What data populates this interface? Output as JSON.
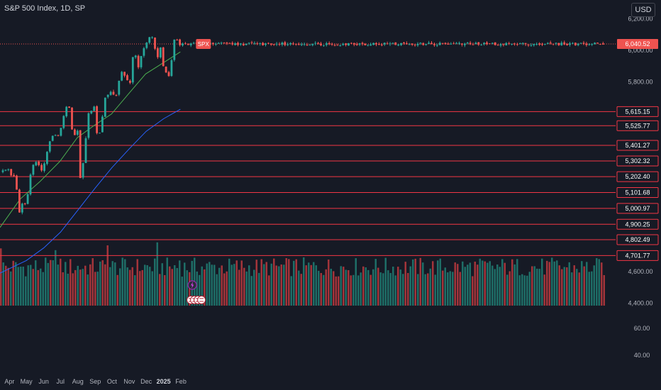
{
  "header": {
    "title": "S&P 500 Index, 1D, SP",
    "currency": "USD"
  },
  "colors": {
    "background": "#161a25",
    "up": "#26a69a",
    "down": "#ef5350",
    "level_line": "#f23645",
    "ma_short": "#4caf50",
    "ma_long": "#2962ff",
    "axis_text": "#b2b5be",
    "vol_up": "#1e6e67",
    "vol_down": "#a3343a"
  },
  "chart_data": {
    "type": "candlestick",
    "title": "S&P 500 Index, 1D, SP",
    "symbol": "SPX",
    "last_price": 6040.52,
    "last_price_label": "6,040.52",
    "price_axis_ticks": [
      6200,
      6000,
      5800,
      4600,
      4400
    ],
    "price_axis_labels": [
      "6,200.00",
      "6,000.00",
      "5,800.00",
      "4,600.00",
      "4,400.00"
    ],
    "volume_axis_labels": [
      "60.00",
      "40.00"
    ],
    "ylim": [
      4400,
      6200
    ],
    "x_tick_labels": [
      "Apr",
      "May",
      "Jun",
      "Jul",
      "Aug",
      "Sep",
      "Oct",
      "Nov",
      "Dec",
      "2025",
      "Feb"
    ],
    "horizontal_levels": [
      {
        "value": 5615.15,
        "label": "5,615.15"
      },
      {
        "value": 5525.77,
        "label": "5,525.77"
      },
      {
        "value": 5401.27,
        "label": "5,401.27"
      },
      {
        "value": 5302.32,
        "label": "5,302.32"
      },
      {
        "value": 5202.4,
        "label": "5,202.40"
      },
      {
        "value": 5101.68,
        "label": "5,101.68"
      },
      {
        "value": 5000.97,
        "label": "5,000.97"
      },
      {
        "value": 4900.25,
        "label": "4,900.25"
      },
      {
        "value": 4802.49,
        "label": "4,802.49"
      },
      {
        "value": 4701.77,
        "label": "4,701.77"
      }
    ],
    "price_path": [
      [
        "2024-03-15",
        5230
      ],
      [
        "2024-03-28",
        5255
      ],
      [
        "2024-04-04",
        5215
      ],
      [
        "2024-04-11",
        5200
      ],
      [
        "2024-04-19",
        4975
      ],
      [
        "2024-04-25",
        5050
      ],
      [
        "2024-05-01",
        5015
      ],
      [
        "2024-05-06",
        5180
      ],
      [
        "2024-05-15",
        5305
      ],
      [
        "2024-05-23",
        5280
      ],
      [
        "2024-05-30",
        5240
      ],
      [
        "2024-06-12",
        5420
      ],
      [
        "2024-06-18",
        5480
      ],
      [
        "2024-06-28",
        5460
      ],
      [
        "2024-07-10",
        5630
      ],
      [
        "2024-07-16",
        5665
      ],
      [
        "2024-07-24",
        5430
      ],
      [
        "2024-07-31",
        5520
      ],
      [
        "2024-08-05",
        5190
      ],
      [
        "2024-08-12",
        5330
      ],
      [
        "2024-08-19",
        5600
      ],
      [
        "2024-08-30",
        5650
      ],
      [
        "2024-09-06",
        5410
      ],
      [
        "2024-09-12",
        5550
      ],
      [
        "2024-09-19",
        5710
      ],
      [
        "2024-09-30",
        5750
      ],
      [
        "2024-10-07",
        5700
      ],
      [
        "2024-10-18",
        5870
      ],
      [
        "2024-10-28",
        5820
      ],
      [
        "2024-10-31",
        5710
      ],
      [
        "2024-11-06",
        5930
      ],
      [
        "2024-11-11",
        6010
      ],
      [
        "2024-11-15",
        5870
      ],
      [
        "2024-11-22",
        5970
      ],
      [
        "2024-12-06",
        6090
      ],
      [
        "2024-12-16",
        6070
      ],
      [
        "2024-12-18",
        5880
      ],
      [
        "2024-12-26",
        6040
      ],
      [
        "2025-01-02",
        5870
      ],
      [
        "2025-01-10",
        5830
      ],
      [
        "2025-01-13",
        5840
      ],
      [
        "2025-01-17",
        6000
      ],
      [
        "2025-01-23",
        6120
      ],
      [
        "2025-01-27",
        6020
      ],
      [
        "2025-01-31",
        6040.52
      ]
    ],
    "ma_short": [
      [
        "2024-03-15",
        4880
      ],
      [
        "2024-04-20",
        5060
      ],
      [
        "2024-05-25",
        5170
      ],
      [
        "2024-06-30",
        5300
      ],
      [
        "2024-07-31",
        5450
      ],
      [
        "2024-08-31",
        5530
      ],
      [
        "2024-09-30",
        5600
      ],
      [
        "2024-10-31",
        5730
      ],
      [
        "2024-11-30",
        5850
      ],
      [
        "2024-12-31",
        5920
      ],
      [
        "2025-01-31",
        5990
      ]
    ],
    "ma_long": [
      [
        "2024-03-15",
        4590
      ],
      [
        "2024-05-01",
        4670
      ],
      [
        "2024-06-01",
        4750
      ],
      [
        "2024-07-01",
        4850
      ],
      [
        "2024-08-01",
        4990
      ],
      [
        "2024-09-01",
        5130
      ],
      [
        "2024-10-01",
        5260
      ],
      [
        "2024-11-01",
        5380
      ],
      [
        "2024-12-01",
        5490
      ],
      [
        "2025-01-01",
        5570
      ],
      [
        "2025-01-31",
        5630
      ]
    ],
    "volume_range": [
      0,
      100
    ],
    "volume_spikes": [
      [
        "2024-03-15",
        95
      ],
      [
        "2024-06-20",
        92
      ],
      [
        "2024-09-20",
        100
      ],
      [
        "2024-12-20",
        105
      ],
      [
        "2025-01-27",
        75
      ]
    ],
    "grid": false,
    "legend": "none"
  }
}
